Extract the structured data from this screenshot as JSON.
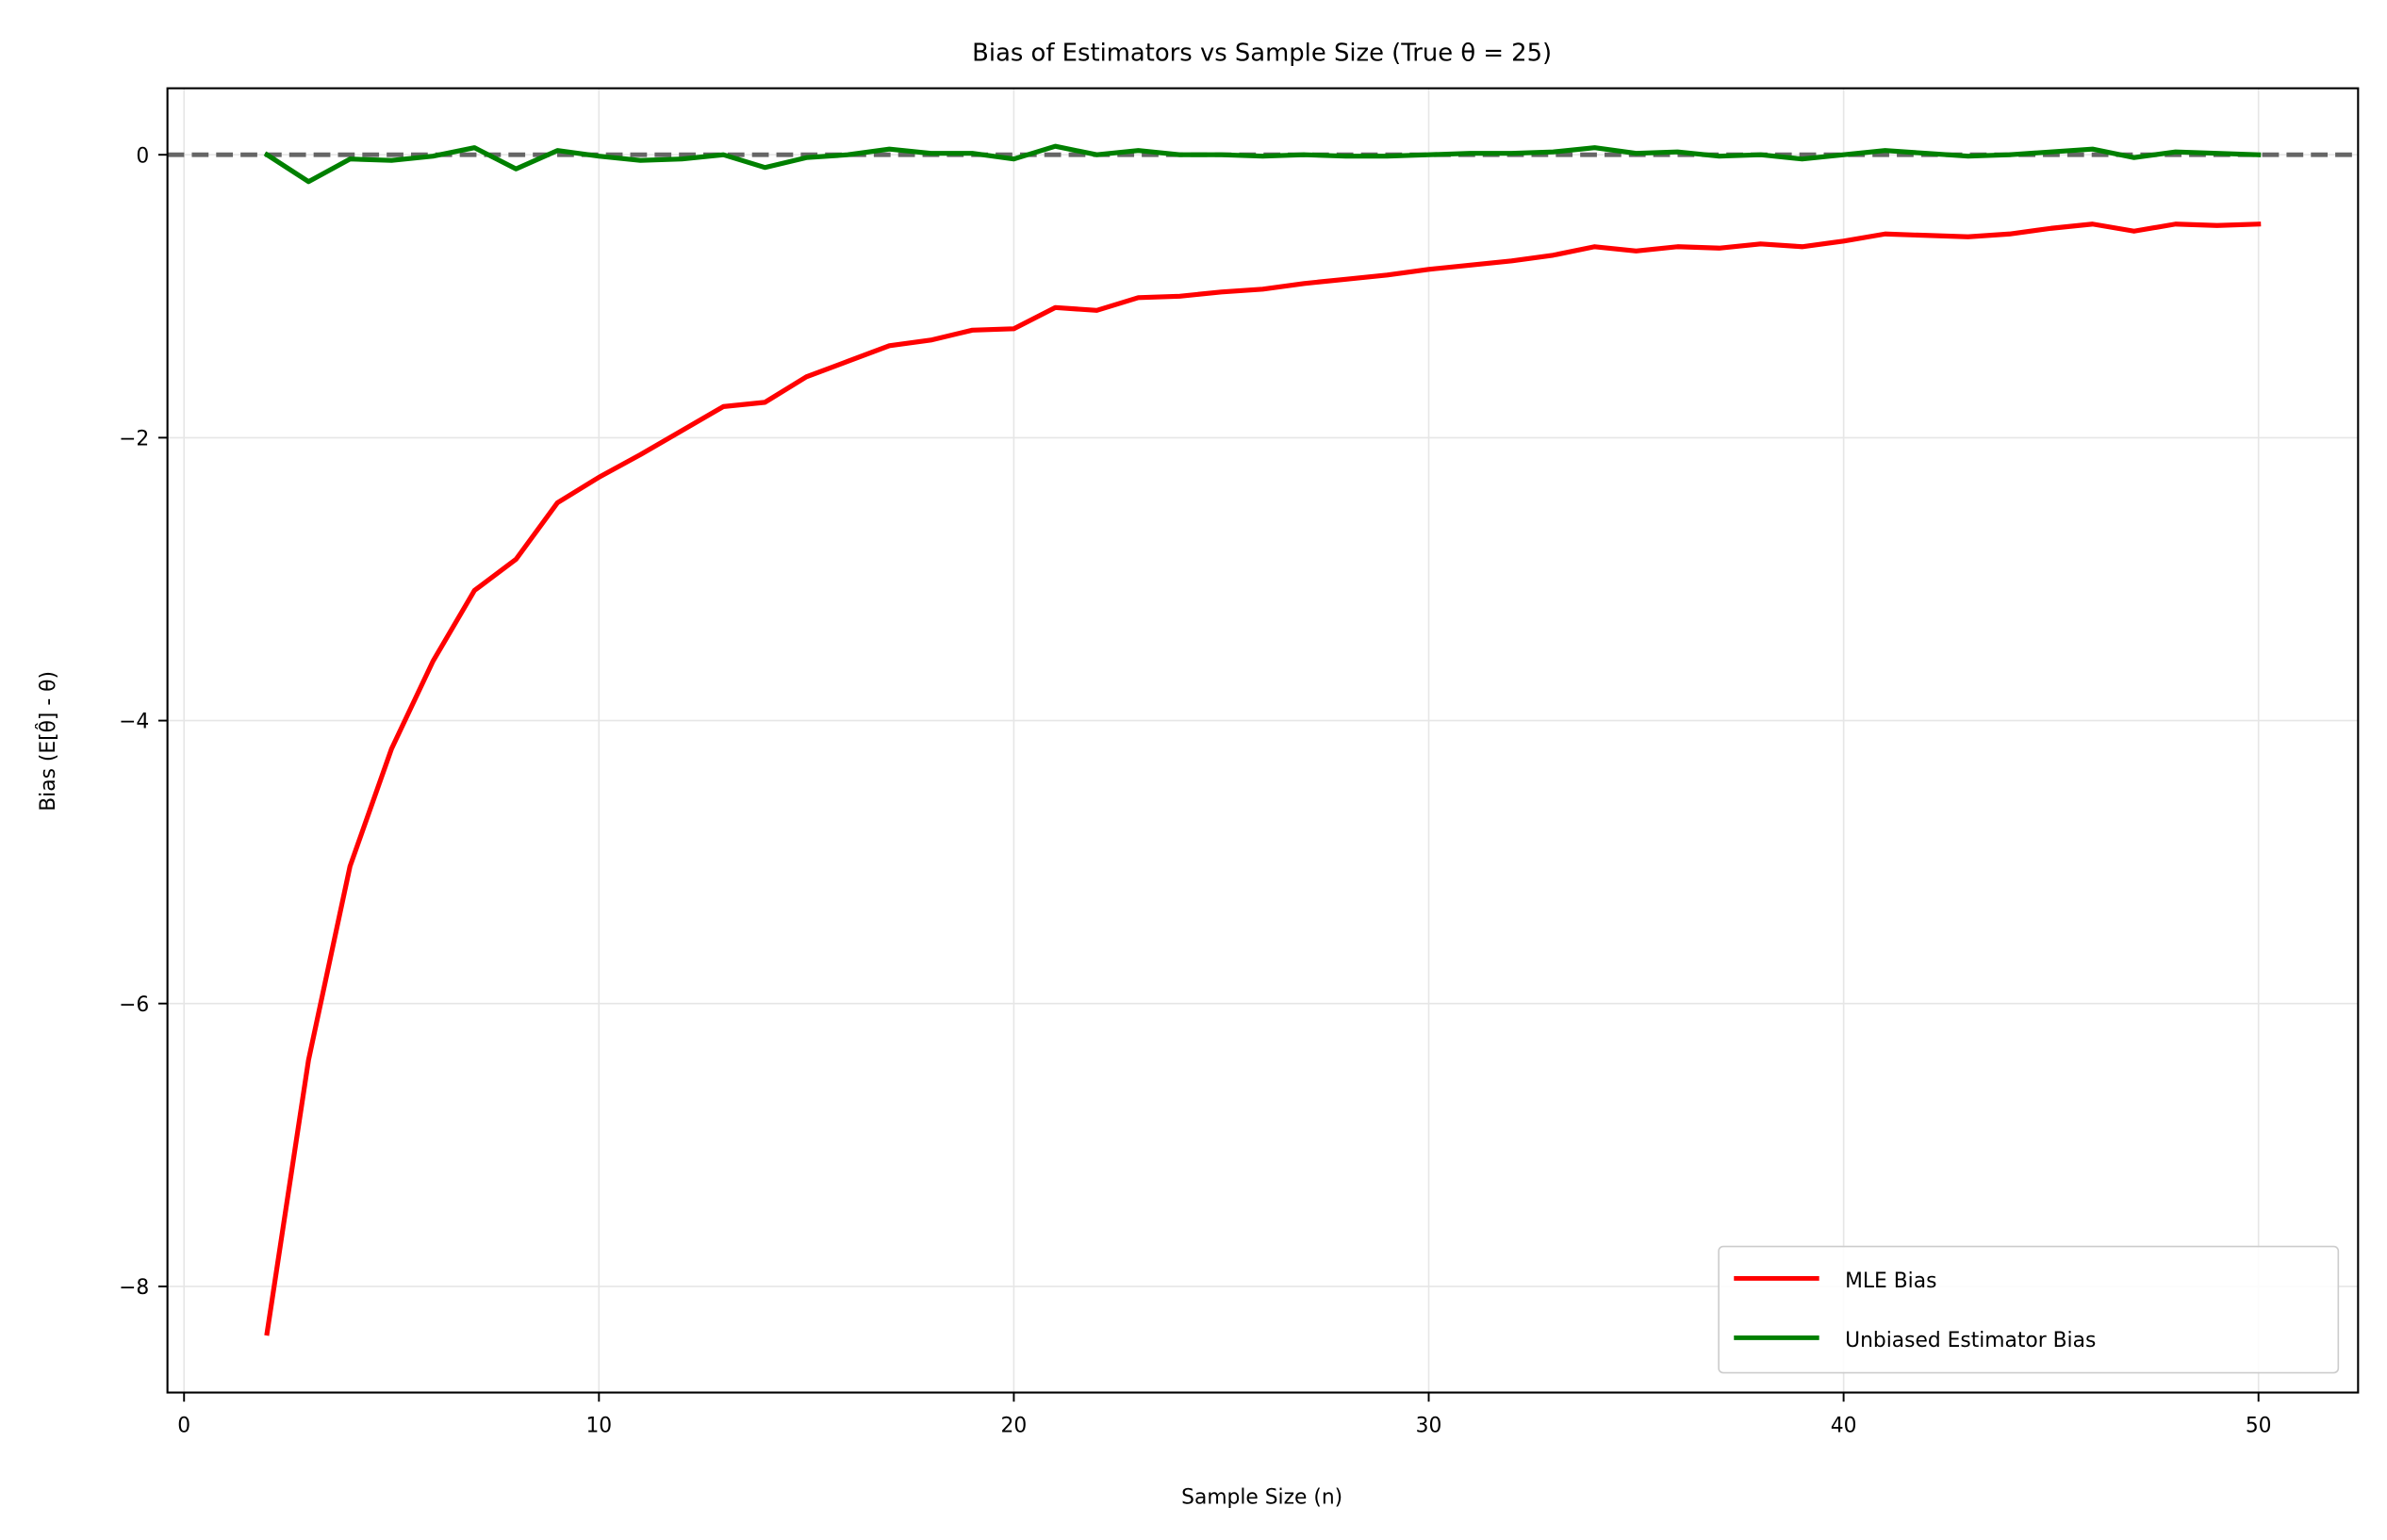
{
  "chart_data": {
    "type": "line",
    "title": "Bias of Estimators vs Sample Size (True θ = 25)",
    "xlabel": "Sample Size (n)",
    "ylabel": "Bias (E[θ̂] - θ)",
    "xlim": [
      -0.4,
      52.4
    ],
    "ylim": [
      -8.75,
      0.47
    ],
    "xticks": [
      0,
      10,
      20,
      30,
      40,
      50
    ],
    "xtick_labels": [
      "0",
      "10",
      "20",
      "30",
      "40",
      "50"
    ],
    "yticks": [
      0,
      -2,
      -4,
      -6,
      -8
    ],
    "ytick_labels": [
      "0",
      "−2",
      "−4",
      "−6",
      "−8"
    ],
    "grid": true,
    "legend_position": "lower-right",
    "reference_line": {
      "y": 0,
      "style": "dashed",
      "color": "#666666"
    },
    "x": [
      2,
      3,
      4,
      5,
      6,
      7,
      8,
      9,
      10,
      11,
      12,
      13,
      14,
      15,
      16,
      17,
      18,
      19,
      20,
      21,
      22,
      23,
      24,
      25,
      26,
      27,
      28,
      29,
      30,
      31,
      32,
      33,
      34,
      35,
      36,
      37,
      38,
      39,
      40,
      41,
      42,
      43,
      44,
      45,
      46,
      47,
      48,
      49,
      50
    ],
    "series": [
      {
        "name": "MLE Bias",
        "color": "#ff0000",
        "values": [
          -8.33,
          -6.4,
          -5.03,
          -4.2,
          -3.58,
          -3.08,
          -2.86,
          -2.46,
          -2.28,
          -2.12,
          -1.95,
          -1.78,
          -1.75,
          -1.57,
          -1.46,
          -1.35,
          -1.31,
          -1.24,
          -1.23,
          -1.08,
          -1.1,
          -1.01,
          -1.0,
          -0.97,
          -0.95,
          -0.91,
          -0.88,
          -0.85,
          -0.81,
          -0.78,
          -0.75,
          -0.71,
          -0.65,
          -0.68,
          -0.65,
          -0.66,
          -0.63,
          -0.65,
          -0.61,
          -0.56,
          -0.57,
          -0.58,
          -0.56,
          -0.52,
          -0.49,
          -0.54,
          -0.49,
          -0.5,
          -0.49
        ]
      },
      {
        "name": "Unbiased Estimator Bias",
        "color": "#008000",
        "values": [
          0.0,
          -0.19,
          -0.03,
          -0.04,
          -0.01,
          0.05,
          -0.1,
          0.03,
          -0.01,
          -0.04,
          -0.03,
          0.0,
          -0.09,
          -0.02,
          0.0,
          0.04,
          0.01,
          0.01,
          -0.03,
          0.06,
          0.0,
          0.03,
          0.0,
          0.0,
          -0.01,
          0.0,
          -0.01,
          -0.01,
          0.0,
          0.01,
          0.01,
          0.02,
          0.05,
          0.01,
          0.02,
          -0.01,
          0.0,
          -0.03,
          0.0,
          0.03,
          0.01,
          -0.01,
          0.0,
          0.02,
          0.04,
          -0.02,
          0.02,
          0.01,
          0.0
        ]
      }
    ]
  }
}
